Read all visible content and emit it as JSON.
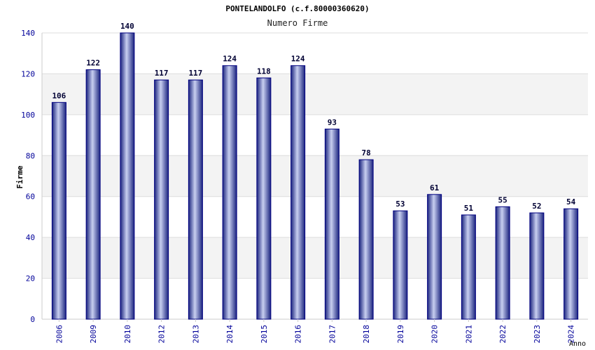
{
  "chart_data": {
    "type": "bar",
    "title": "PONTELANDOLFO (c.f.80000360620)",
    "subtitle": "Numero Firme",
    "xlabel": "Anno",
    "ylabel": "Firme",
    "categories": [
      "2006",
      "2009",
      "2010",
      "2012",
      "2013",
      "2014",
      "2015",
      "2016",
      "2017",
      "2018",
      "2019",
      "2020",
      "2021",
      "2022",
      "2023",
      "2024"
    ],
    "values": [
      106,
      122,
      140,
      117,
      117,
      124,
      118,
      124,
      93,
      78,
      53,
      61,
      51,
      55,
      52,
      54
    ],
    "ylim": [
      0,
      140
    ],
    "yticks": [
      0,
      20,
      40,
      60,
      80,
      100,
      120,
      140
    ],
    "grid": true,
    "legend": "none"
  },
  "colors": {
    "bar_edge": "#000080",
    "bar_light": "#c8cff0",
    "bar_dark": "#1a237e",
    "band": "#f3f3f3",
    "axis_text": "#000099",
    "value_text": "#000033"
  }
}
